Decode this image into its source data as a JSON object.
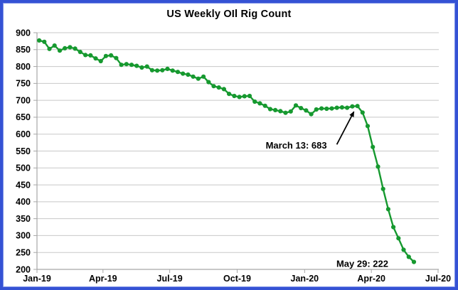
{
  "title": "US Weekly OIl Rig Count",
  "colors": {
    "line": "#16992f",
    "grid": "#c8c8c8",
    "axis": "#a6a6a6",
    "frame_border": "#3552d4",
    "annotation": "#000000"
  },
  "chart_data": {
    "type": "line",
    "title": "US Weekly OIl Rig Count",
    "series_name": "US weekly oil rig count",
    "start_date": "2019-01-04",
    "interval_days": 7,
    "values": [
      877,
      873,
      852,
      862,
      847,
      854,
      857,
      853,
      843,
      834,
      833,
      824,
      816,
      831,
      833,
      825,
      805,
      807,
      805,
      802,
      797,
      800,
      789,
      788,
      789,
      793,
      788,
      784,
      779,
      776,
      770,
      764,
      770,
      754,
      742,
      738,
      733,
      719,
      713,
      710,
      712,
      713,
      696,
      691,
      684,
      674,
      671,
      668,
      663,
      667,
      685,
      677,
      670,
      659,
      673,
      676,
      675,
      676,
      678,
      679,
      678,
      682,
      683,
      664,
      624,
      562,
      504,
      438,
      378,
      325,
      292,
      258,
      237,
      222
    ],
    "xlim_dates": [
      "2019-01-01",
      "2020-07-01"
    ],
    "x_ticks": [
      {
        "date": "2019-01-01",
        "label": "Jan-19"
      },
      {
        "date": "2019-04-01",
        "label": "Apr-19"
      },
      {
        "date": "2019-07-01",
        "label": "Jul-19"
      },
      {
        "date": "2019-10-01",
        "label": "Oct-19"
      },
      {
        "date": "2020-01-01",
        "label": "Jan-20"
      },
      {
        "date": "2020-04-01",
        "label": "Apr-20"
      },
      {
        "date": "2020-07-01",
        "label": "Jul-20"
      }
    ],
    "ylim": [
      200,
      900
    ],
    "y_ticks": [
      200,
      250,
      300,
      350,
      400,
      450,
      500,
      550,
      600,
      650,
      700,
      750,
      800,
      850,
      900
    ],
    "grid": true,
    "legend": "none",
    "annotations": [
      {
        "id": "march13",
        "text": "March 13: 683",
        "date": "2020-03-13",
        "value": 683,
        "arrow": true
      },
      {
        "id": "may29",
        "text": "May 29: 222",
        "date": "2020-05-29",
        "value": 222,
        "arrow": false
      }
    ]
  }
}
